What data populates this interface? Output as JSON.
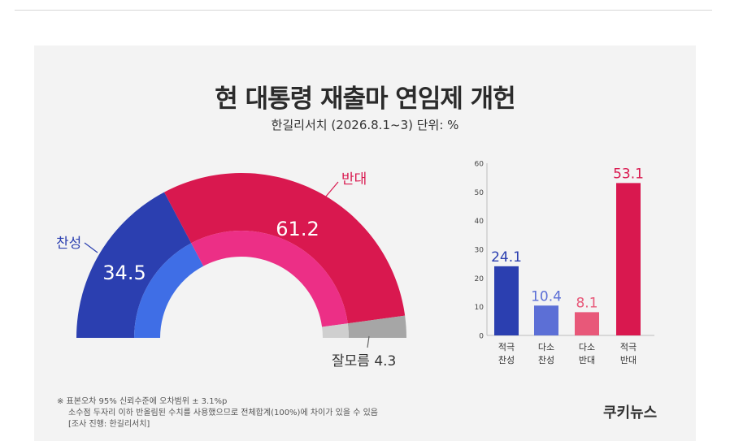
{
  "title": "현 대통령 재출마 연임제 개헌",
  "subtitle": "한길리서치 (2026.8.1~3) 단위: %",
  "footnotes": [
    "※ 표본오차 95% 신뢰수준에 오차범위 ± 3.1%p",
    "소수점 두자리 이하 반올림된 수치를 사용했으므로 전체합계(100%)에 차이가 있을 수 있음",
    "[조사 진행: 한길리서치]"
  ],
  "brand": "쿠키뉴스",
  "colors": {
    "favor": "#2b3fb0",
    "favor_inner": "#3f6ee6",
    "oppose": "#d9184f",
    "oppose_inner": "#ec2f86",
    "unsure": "#a6a6a6",
    "unsure_inner": "#cfcfcf",
    "bar_favor_strong": "#2b3fb0",
    "bar_favor_weak": "#5c6fd6",
    "bar_oppose_weak": "#e85879",
    "bar_oppose_strong": "#d9184f"
  },
  "chart_data": [
    {
      "type": "pie",
      "style": "half-donut",
      "slices": [
        {
          "label": "찬성",
          "value": 34.5,
          "value_label": "34.5"
        },
        {
          "label": "반대",
          "value": 61.2,
          "value_label": "61.2"
        },
        {
          "label": "잘모름",
          "value": 4.3,
          "value_label": "잘모름 4.3"
        }
      ]
    },
    {
      "type": "bar",
      "categories": [
        "적극\n찬성",
        "다소\n찬성",
        "다소\n반대",
        "적극\n반대"
      ],
      "category_lines": [
        [
          "적극",
          "찬성"
        ],
        [
          "다소",
          "찬성"
        ],
        [
          "다소",
          "반대"
        ],
        [
          "적극",
          "반대"
        ]
      ],
      "values": [
        24.1,
        10.4,
        8.1,
        53.1
      ],
      "value_labels": [
        "24.1",
        "10.4",
        "8.1",
        "53.1"
      ],
      "ylim": [
        0,
        60
      ],
      "yticks": [
        0,
        10,
        20,
        30,
        40,
        50,
        60
      ],
      "grid": false
    }
  ]
}
